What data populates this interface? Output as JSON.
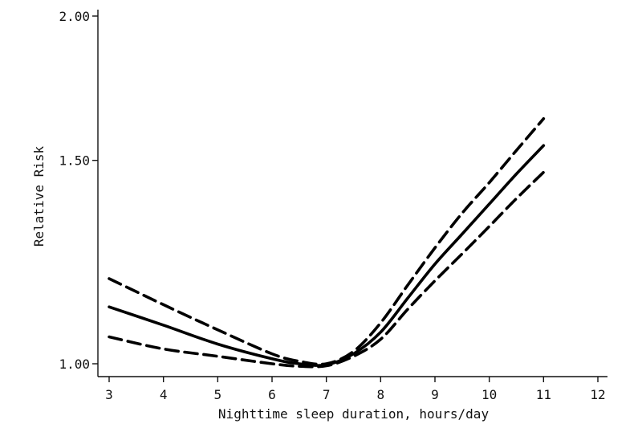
{
  "chart_data": {
    "type": "line",
    "title": "",
    "xlabel": "Nighttime sleep duration, hours/day",
    "ylabel": "Relative Risk",
    "xlim": [
      3,
      12
    ],
    "ylim": [
      1.0,
      2.0
    ],
    "y_scale": "log",
    "x_ticks": [
      3,
      4,
      5,
      6,
      7,
      8,
      9,
      10,
      11,
      12
    ],
    "x_tick_labels": [
      "3",
      "4",
      "5",
      "6",
      "7",
      "8",
      "9",
      "10",
      "11",
      "12"
    ],
    "y_ticks": [
      1.0,
      1.5,
      2.0
    ],
    "y_tick_labels": [
      "1.00",
      "1.50",
      "2.00"
    ],
    "grid": false,
    "legend": "none",
    "series": [
      {
        "style": "dashed",
        "points": [
          [
            3,
            1.185
          ],
          [
            4,
            1.125
          ],
          [
            5,
            1.07
          ],
          [
            6,
            1.02
          ],
          [
            6.5,
            1.005
          ],
          [
            7,
            1.0
          ],
          [
            7.5,
            1.025
          ],
          [
            8,
            1.085
          ],
          [
            8.5,
            1.17
          ],
          [
            9,
            1.26
          ],
          [
            9.5,
            1.35
          ],
          [
            10,
            1.435
          ],
          [
            10.5,
            1.53
          ],
          [
            11,
            1.63
          ]
        ]
      },
      {
        "style": "solid",
        "points": [
          [
            3,
            1.12
          ],
          [
            4,
            1.08
          ],
          [
            5,
            1.04
          ],
          [
            6,
            1.01
          ],
          [
            6.5,
            1.0
          ],
          [
            7,
            0.998
          ],
          [
            7.5,
            1.02
          ],
          [
            8,
            1.065
          ],
          [
            8.5,
            1.14
          ],
          [
            9,
            1.22
          ],
          [
            9.5,
            1.295
          ],
          [
            10,
            1.375
          ],
          [
            10.5,
            1.46
          ],
          [
            11,
            1.545
          ]
        ]
      },
      {
        "style": "dashed",
        "points": [
          [
            3,
            1.055
          ],
          [
            4,
            1.03
          ],
          [
            5,
            1.015
          ],
          [
            6,
            1.0
          ],
          [
            6.5,
            0.995
          ],
          [
            7,
            0.996
          ],
          [
            7.5,
            1.015
          ],
          [
            8,
            1.05
          ],
          [
            8.5,
            1.115
          ],
          [
            9,
            1.18
          ],
          [
            9.5,
            1.245
          ],
          [
            10,
            1.315
          ],
          [
            10.5,
            1.39
          ],
          [
            11,
            1.465
          ]
        ]
      }
    ]
  }
}
